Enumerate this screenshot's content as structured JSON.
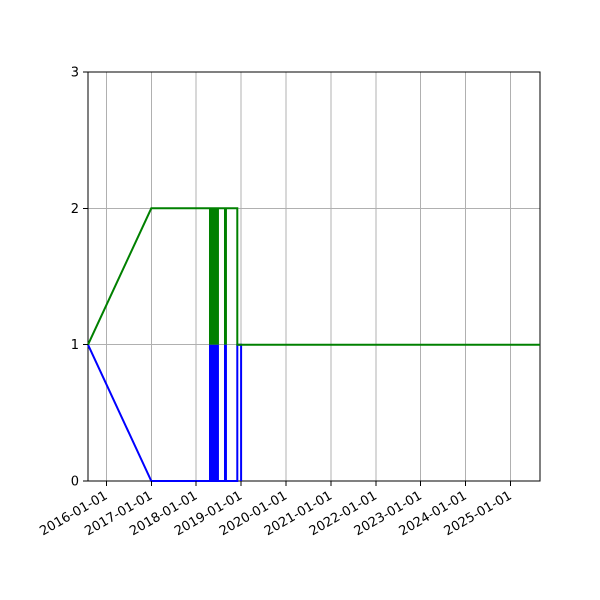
{
  "figure": {
    "background_color": "#ffffff",
    "border_color": "#000000",
    "grid_color": "#b0b0b0",
    "tick_color": "#000000",
    "label_color": "#000000"
  },
  "chart_data": {
    "type": "line",
    "title": "",
    "xlabel": "",
    "ylabel": "",
    "grid": true,
    "legend_position": "none",
    "x_domain": [
      "2015-08-05",
      "2025-08-28"
    ],
    "ylim": [
      0,
      3
    ],
    "x_tick_labels": [
      "2016-01-01",
      "2017-01-01",
      "2018-01-01",
      "2019-01-01",
      "2020-01-01",
      "2021-01-01",
      "2022-01-01",
      "2023-01-01",
      "2024-01-01",
      "2025-01-01"
    ],
    "x_tick_rotation_deg": 30,
    "y_tick_labels": [
      "0",
      "1",
      "2",
      "3"
    ],
    "series": [
      {
        "name": "blue-series",
        "color": "#0000ff",
        "points": [
          [
            "2015-08-05",
            1
          ],
          [
            "2017-01-01",
            0
          ],
          [
            "2018-12-01",
            0
          ],
          [
            "2018-12-01",
            1
          ],
          [
            "2019-01-01",
            1
          ],
          [
            "2019-01-01",
            0
          ]
        ]
      },
      {
        "name": "green-series",
        "color": "#008000",
        "points": [
          [
            "2015-08-05",
            1
          ],
          [
            "2017-01-01",
            2
          ],
          [
            "2018-12-01",
            2
          ],
          [
            "2018-12-01",
            1
          ],
          [
            "2025-08-28",
            1
          ]
        ]
      }
    ],
    "oscillation_bands": [
      {
        "series": "blue-series",
        "color": "#0000ff",
        "start": "2018-04-15",
        "end": "2018-07-05",
        "low": 0,
        "high": 1
      },
      {
        "series": "blue-series",
        "color": "#0000ff",
        "start": "2018-08-15",
        "end": "2018-09-08",
        "low": 0,
        "high": 1
      },
      {
        "series": "green-series",
        "color": "#008000",
        "start": "2018-04-15",
        "end": "2018-07-05",
        "low": 1,
        "high": 2
      },
      {
        "series": "green-series",
        "color": "#008000",
        "start": "2018-08-15",
        "end": "2018-09-08",
        "low": 1,
        "high": 2
      }
    ]
  }
}
